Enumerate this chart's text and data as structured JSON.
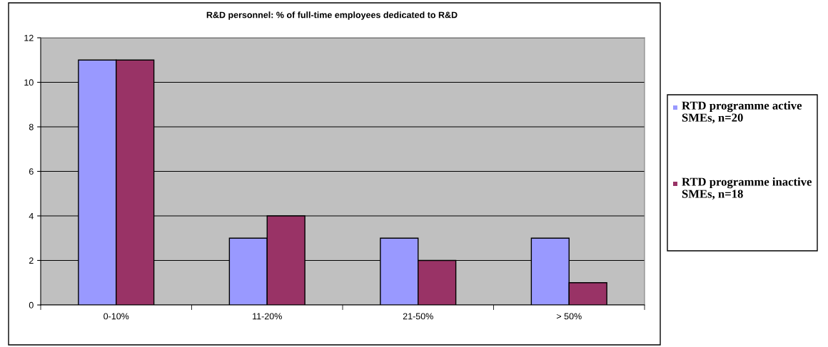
{
  "chart_data": {
    "type": "bar",
    "title": "R&D personnel: % of full-time employees dedicated to R&D",
    "categories": [
      "0-10%",
      "11-20%",
      "21-50%",
      "> 50%"
    ],
    "series": [
      {
        "name": "RTD programme active SMEs, n=20",
        "color": "#9999ff",
        "values": [
          11,
          3,
          3,
          3
        ]
      },
      {
        "name": "RTD programme inactive SMEs, n=18",
        "color": "#993366",
        "values": [
          11,
          4,
          2,
          1
        ]
      }
    ],
    "ylim": [
      0,
      12
    ],
    "yticks": [
      0,
      2,
      4,
      6,
      8,
      10,
      12
    ],
    "grid": "y",
    "legend": "right"
  }
}
